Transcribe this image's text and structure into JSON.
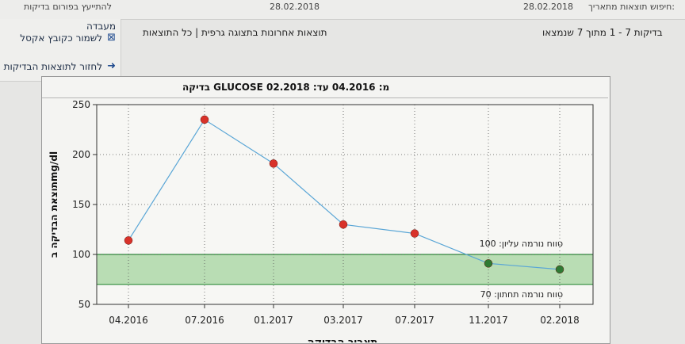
{
  "topbar": {
    "left_text": "להתייעץ בפורום בדיקות",
    "date_mid": "28.02.2018",
    "date_right": "28.02.2018",
    "right_text": "חיפוש תוצאות מתאריך:"
  },
  "crumbs": {
    "middle": "תוצאות אחרונות בתצוגה גרפית | כל התוצאות",
    "right": "בדיקות 7 - 1 מתוך 7 שנמצאו"
  },
  "sidebar": {
    "items": [
      {
        "label": "מעבדה",
        "icon": "chat-icon"
      },
      {
        "label": "לשמור כקובץ אקסל",
        "icon": "excel-icon"
      },
      {
        "label": "לחזור לתוצאות הבדיקות",
        "icon": "arrow-right-icon"
      }
    ]
  },
  "chart_data": {
    "type": "line",
    "title": "בדיקה GLUCOSE  מ: 04.2016  עד: 02.2018",
    "ylabel": "תוצאת הבדיקה בmg/dl",
    "xlabel": "תאריך הבדיקה",
    "ylim": [
      50,
      250
    ],
    "yticks": [
      50,
      100,
      150,
      200,
      250
    ],
    "categories": [
      "04.2016",
      "07.2016",
      "01.2017",
      "03.2017",
      "07.2017",
      "11.2017",
      "02.2018"
    ],
    "values": [
      114,
      235,
      191,
      130,
      121,
      91,
      85
    ],
    "point_colors": [
      "#d8322a",
      "#d8322a",
      "#d8322a",
      "#d8322a",
      "#d8322a",
      "#2f7a34",
      "#2f7a34"
    ],
    "normal_range": {
      "upper": 100,
      "lower": 70,
      "upper_label": "טווח נורמה עליון: 100",
      "lower_label": "טווח נורמה תחתון: 70",
      "color": "#b9ddb4"
    },
    "line_color": "#5aa6d6",
    "grid": true
  }
}
